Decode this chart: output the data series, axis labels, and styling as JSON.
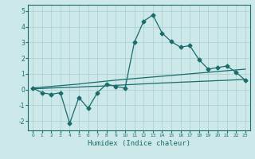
{
  "xlabel": "Humidex (Indice chaleur)",
  "bg_color": "#cce8e8",
  "line_color": "#1a6b6b",
  "x_data": [
    0,
    1,
    2,
    3,
    4,
    5,
    6,
    7,
    8,
    9,
    10,
    11,
    12,
    13,
    14,
    15,
    16,
    17,
    18,
    19,
    20,
    21,
    22,
    23
  ],
  "y_main": [
    0.1,
    -0.2,
    -0.3,
    -0.2,
    -2.15,
    -0.5,
    -1.2,
    -0.2,
    0.35,
    0.2,
    0.1,
    3.0,
    4.35,
    4.75,
    3.6,
    3.05,
    2.7,
    2.8,
    1.9,
    1.3,
    1.4,
    1.5,
    1.1,
    0.6
  ],
  "y_linear1": [
    0.1,
    0.15,
    0.2,
    0.25,
    0.3,
    0.35,
    0.42,
    0.48,
    0.54,
    0.6,
    0.65,
    0.7,
    0.75,
    0.8,
    0.85,
    0.9,
    0.95,
    1.0,
    1.05,
    1.1,
    1.15,
    1.2,
    1.25,
    1.3
  ],
  "y_linear2": [
    0.05,
    0.07,
    0.1,
    0.12,
    0.14,
    0.16,
    0.19,
    0.21,
    0.24,
    0.27,
    0.3,
    0.33,
    0.36,
    0.39,
    0.42,
    0.44,
    0.47,
    0.49,
    0.52,
    0.54,
    0.57,
    0.59,
    0.62,
    0.65
  ],
  "ylim": [
    -2.6,
    5.4
  ],
  "xlim": [
    -0.5,
    23.5
  ],
  "yticks": [
    -2,
    -1,
    0,
    1,
    2,
    3,
    4,
    5
  ],
  "xticks": [
    0,
    1,
    2,
    3,
    4,
    5,
    6,
    7,
    8,
    9,
    10,
    11,
    12,
    13,
    14,
    15,
    16,
    17,
    18,
    19,
    20,
    21,
    22,
    23
  ],
  "grid_color": "#aacece",
  "markersize": 2.5,
  "linewidth": 0.9
}
